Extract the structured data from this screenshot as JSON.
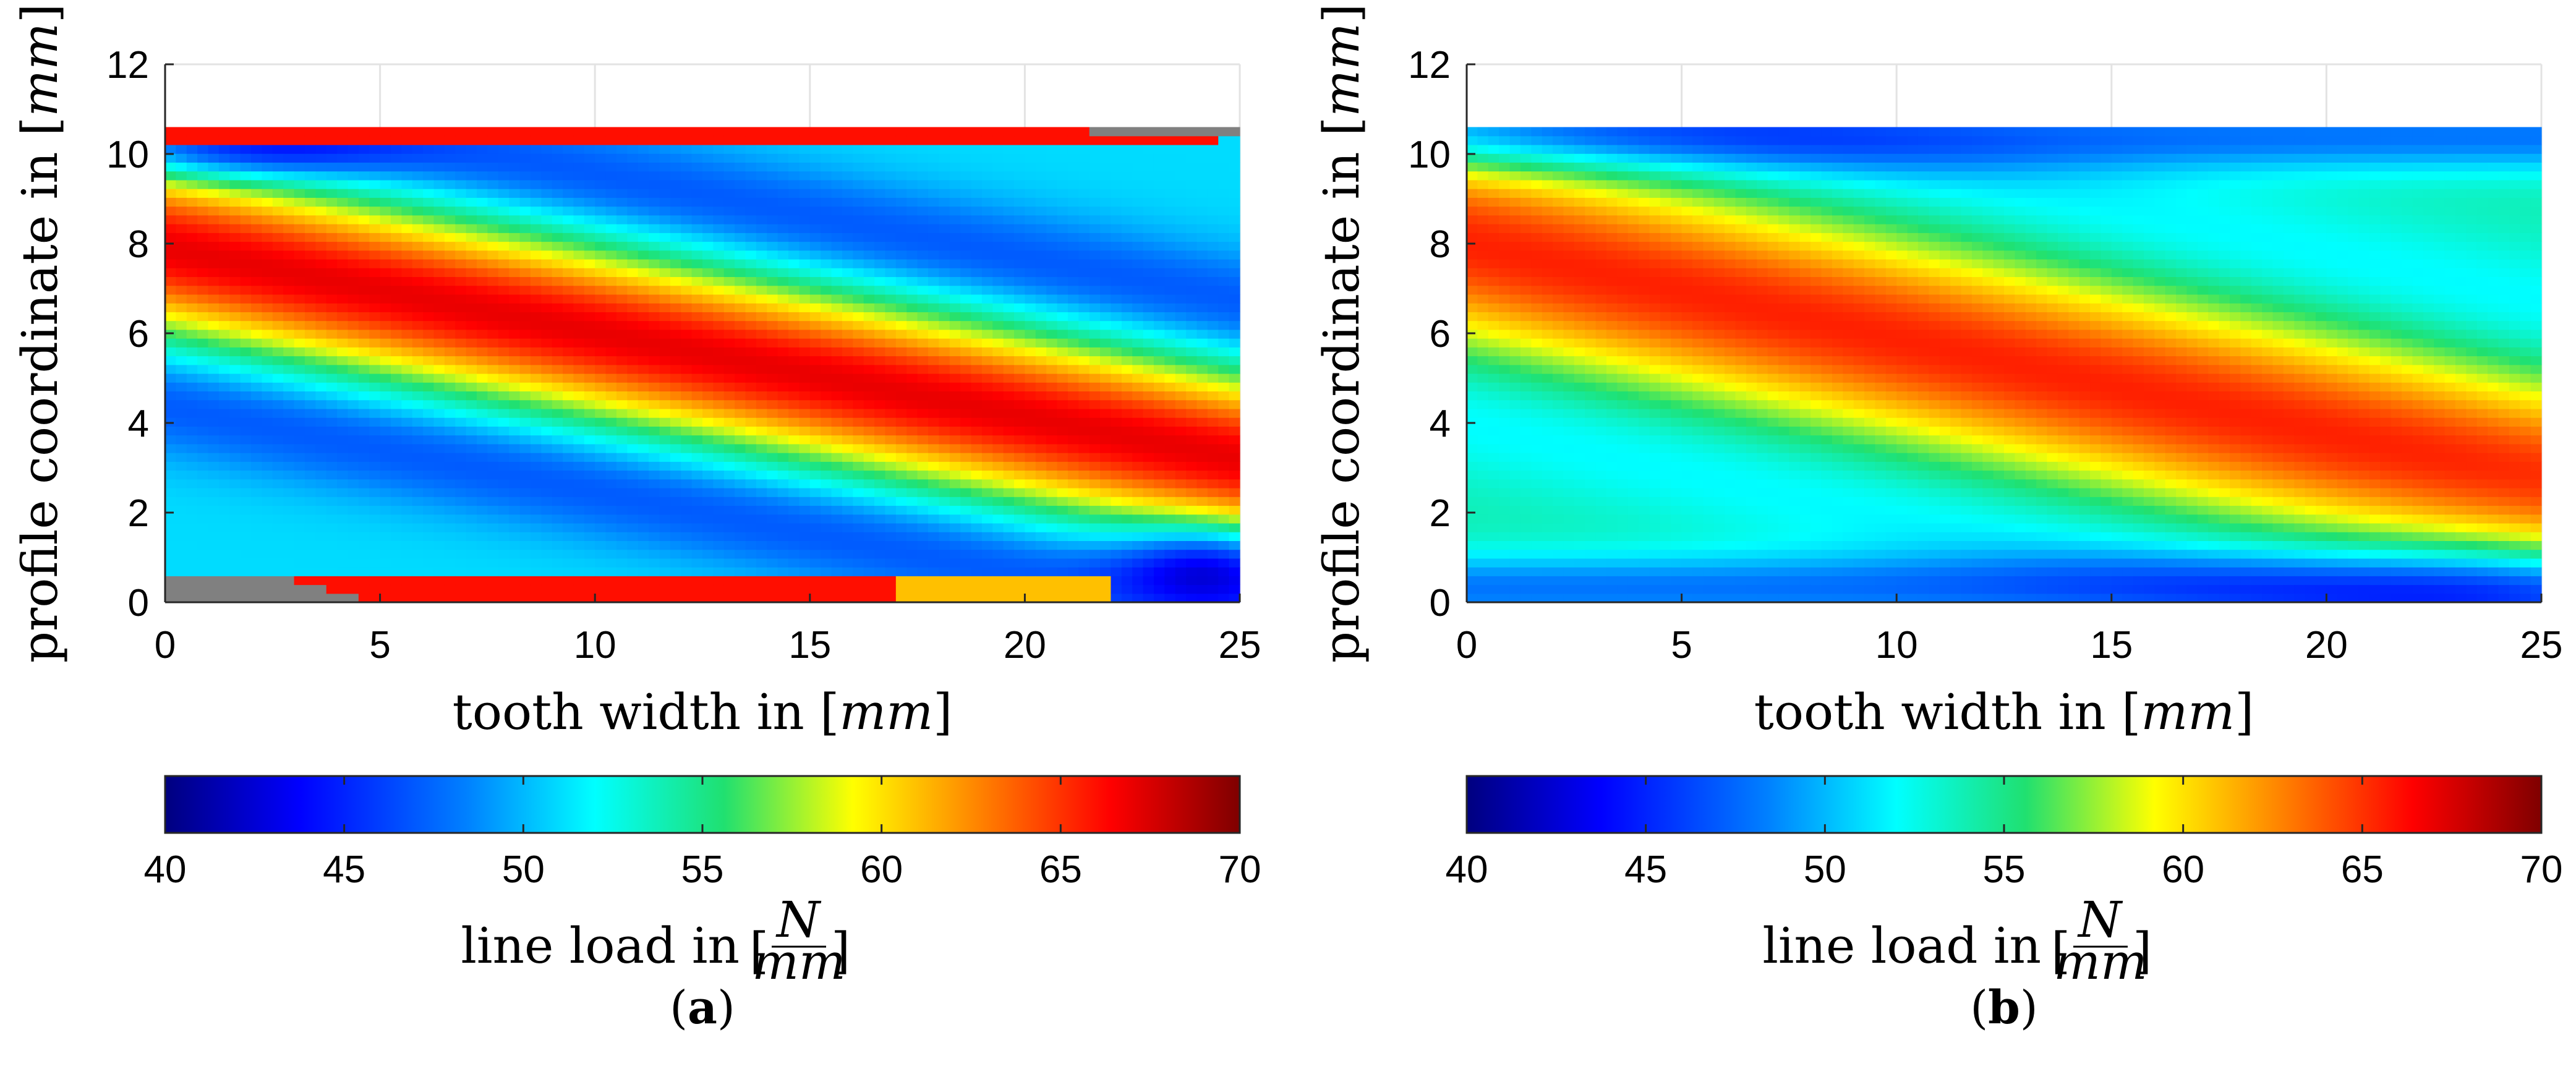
{
  "figure": {
    "colormap": {
      "name": "jet",
      "stops": [
        "#00007f",
        "#0000ff",
        "#0080ff",
        "#00ffff",
        "#20e070",
        "#ffff00",
        "#ff8000",
        "#ff0000",
        "#7f0000"
      ],
      "range": [
        40,
        70
      ],
      "ticks": [
        40,
        45,
        50,
        55,
        60,
        65,
        70
      ],
      "label_prefix": "line load in",
      "label_unit_numerator": "N",
      "label_unit_denominator": "mm"
    },
    "panels": [
      {
        "caption_open": "(",
        "caption_letter": "a",
        "caption_close": ")",
        "xlabel_prefix": "tooth width in",
        "xlabel_unit": "mm",
        "ylabel_prefix": "profile coordinate in",
        "ylabel_unit": "mm"
      },
      {
        "caption_open": "(",
        "caption_letter": "b",
        "caption_close": ")",
        "xlabel_prefix": "tooth width in",
        "xlabel_unit": "mm",
        "ylabel_prefix": "profile coordinate in",
        "ylabel_unit": "mm"
      }
    ]
  },
  "chart_data": [
    {
      "type": "heatmap",
      "title": "",
      "panel": "a",
      "xlabel": "tooth width in [mm]",
      "ylabel": "profile coordinate in [mm]",
      "xlim": [
        0,
        25
      ],
      "ylim": [
        0,
        12
      ],
      "xticks": [
        0,
        5,
        10,
        15,
        20,
        25
      ],
      "yticks": [
        0,
        2,
        4,
        6,
        8,
        10,
        12
      ],
      "grid": true,
      "contact_region_y": [
        0,
        10.6
      ],
      "colorbar": {
        "label": "line load in [N/mm]",
        "range": [
          40,
          70
        ],
        "ticks": [
          40,
          45,
          50,
          55,
          60,
          65,
          70
        ]
      },
      "features": {
        "diagonal_band": {
          "start": [
            0,
            7.9
          ],
          "end": [
            25,
            3.2
          ],
          "peak_value": 67,
          "sigma_mm": 1.35
        },
        "edge_peaks": {
          "top_y": 10.55,
          "bottom_y": 0.15,
          "value": 66
        },
        "background_value": 51,
        "unloaded_corners": true
      }
    },
    {
      "type": "heatmap",
      "title": "",
      "panel": "b",
      "xlabel": "tooth width in [mm]",
      "ylabel": "profile coordinate in [mm]",
      "xlim": [
        0,
        25
      ],
      "ylim": [
        0,
        12
      ],
      "xticks": [
        0,
        5,
        10,
        15,
        20,
        25
      ],
      "yticks": [
        0,
        2,
        4,
        6,
        8,
        10,
        12
      ],
      "grid": true,
      "contact_region_y": [
        0,
        10.6
      ],
      "colorbar": {
        "label": "line load in [N/mm]",
        "range": [
          40,
          70
        ],
        "ticks": [
          40,
          45,
          50,
          55,
          60,
          65,
          70
        ]
      },
      "features": {
        "diagonal_band": {
          "start": [
            0,
            8.0
          ],
          "end": [
            25,
            2.7
          ],
          "peak_value": 65.5,
          "sigma_mm": 1.55
        },
        "edge_peaks": null,
        "background_value": 54,
        "unloaded_corners": false
      }
    }
  ]
}
